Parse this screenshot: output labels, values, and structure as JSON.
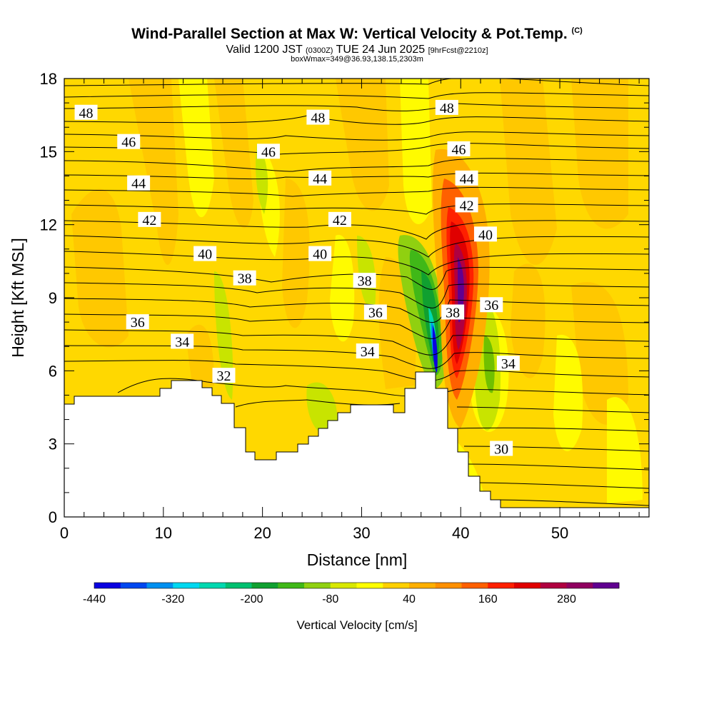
{
  "title": "Wind-Parallel Section at Max W: Vertical Velocity & Pot.Temp.",
  "title_mark": "(C)",
  "subtitle_main": "Valid 1200 JST",
  "subtitle_small": "(0300Z)",
  "subtitle_date": "TUE 24 Jun 2025",
  "subtitle_fcst": "[9hrFcst@2210z]",
  "subtitle3": "boxWmax=349@36.93,138.15,2303m",
  "chart_data": {
    "type": "contour",
    "xlabel": "Distance [nm]",
    "ylabel": "Height [Kft MSL]",
    "xlim": [
      0,
      59
    ],
    "ylim": [
      0,
      18
    ],
    "x_ticks": [
      "0",
      "10",
      "20",
      "30",
      "40",
      "50"
    ],
    "y_ticks": [
      "0",
      "3",
      "6",
      "9",
      "12",
      "15",
      "18"
    ],
    "colorbar": {
      "label": "Vertical Velocity [cm/s]",
      "tick_labels": [
        "-440",
        "-320",
        "-200",
        "-80",
        "40",
        "160",
        "280"
      ],
      "colors": [
        "#0a00e0",
        "#0048f0",
        "#0090f0",
        "#00d8f0",
        "#00d8b0",
        "#00c070",
        "#10a030",
        "#40b818",
        "#90d010",
        "#d8e800",
        "#ffff00",
        "#ffd000",
        "#ffb000",
        "#ff9000",
        "#ff6000",
        "#ff2000",
        "#e00000",
        "#b00040",
        "#900060",
        "#600090"
      ]
    },
    "theta_labels": [
      {
        "text": "48",
        "x": 2.2,
        "y": 16.6
      },
      {
        "text": "46",
        "x": 6.5,
        "y": 15.4
      },
      {
        "text": "44",
        "x": 7.5,
        "y": 13.7
      },
      {
        "text": "42",
        "x": 8.6,
        "y": 12.2
      },
      {
        "text": "40",
        "x": 14.2,
        "y": 10.8
      },
      {
        "text": "38",
        "x": 18.2,
        "y": 9.8
      },
      {
        "text": "36",
        "x": 7.4,
        "y": 8.0
      },
      {
        "text": "34",
        "x": 11.9,
        "y": 7.2
      },
      {
        "text": "32",
        "x": 16.1,
        "y": 5.8
      },
      {
        "text": "48",
        "x": 25.6,
        "y": 16.4
      },
      {
        "text": "46",
        "x": 20.6,
        "y": 15.0
      },
      {
        "text": "44",
        "x": 25.8,
        "y": 13.9
      },
      {
        "text": "42",
        "x": 27.8,
        "y": 12.2
      },
      {
        "text": "40",
        "x": 25.8,
        "y": 10.8
      },
      {
        "text": "38",
        "x": 30.3,
        "y": 9.7
      },
      {
        "text": "36",
        "x": 31.4,
        "y": 8.4
      },
      {
        "text": "34",
        "x": 30.6,
        "y": 6.8
      },
      {
        "text": "48",
        "x": 38.6,
        "y": 16.8
      },
      {
        "text": "46",
        "x": 39.8,
        "y": 15.1
      },
      {
        "text": "44",
        "x": 40.6,
        "y": 13.9
      },
      {
        "text": "42",
        "x": 40.6,
        "y": 12.8
      },
      {
        "text": "40",
        "x": 42.5,
        "y": 11.6
      },
      {
        "text": "38",
        "x": 39.2,
        "y": 8.4
      },
      {
        "text": "36",
        "x": 43.1,
        "y": 8.7
      },
      {
        "text": "34",
        "x": 44.8,
        "y": 6.3
      },
      {
        "text": "30",
        "x": 44.1,
        "y": 2.8
      }
    ]
  }
}
